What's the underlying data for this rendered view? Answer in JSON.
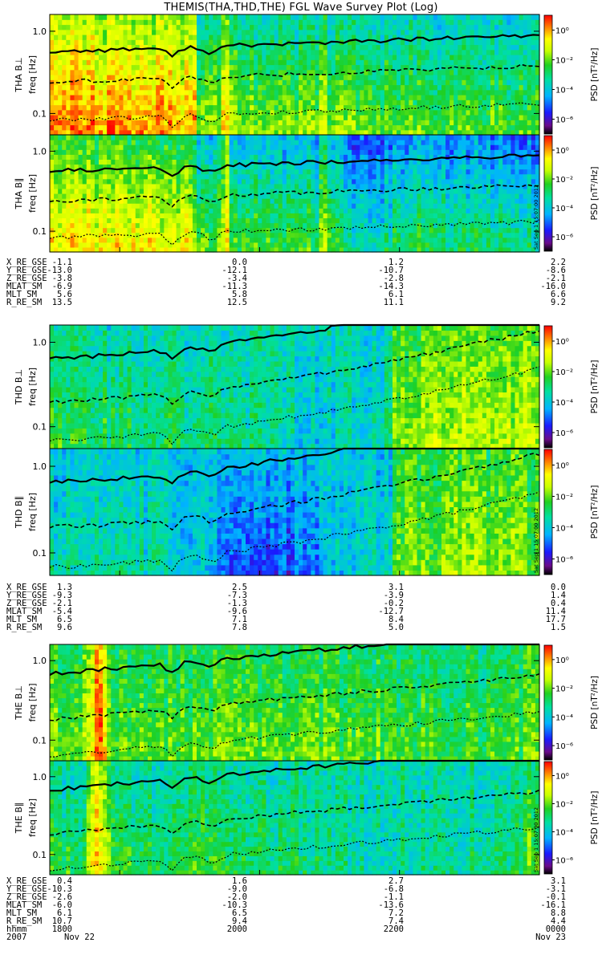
{
  "title": "THEMIS(THA,THD,THE) FGL Wave Survey Plot (Log)",
  "stamp": "Sat Sep  1 15:07:00 2012",
  "chart_data": {
    "type": "heatmap",
    "title": "THEMIS(THA,THD,THE) FGL Wave Survey Plot (Log)",
    "x_range_hhmm": [
      "1700",
      "0000"
    ],
    "time_ticks": [
      {
        "hhmm": "1800",
        "x_frac": 0.142857
      },
      {
        "hhmm": "2000",
        "x_frac": 0.428571
      },
      {
        "hhmm": "2200",
        "x_frac": 0.714286
      },
      {
        "hhmm": "0000",
        "x_frac": 1.0
      }
    ],
    "date_labels": {
      "year": "2007",
      "start": "Nov 22",
      "end": "Nov 23"
    },
    "time_row_label": "hhmm",
    "freq_axis": {
      "label": "freq [Hz]",
      "scale": "log",
      "range": [
        0.055,
        1.6
      ],
      "ticks": [
        "1.0",
        "0.1"
      ]
    },
    "colorbar": {
      "label": "PSD [nT²/Hz]",
      "scale": "log",
      "range": [
        1e-07,
        10
      ],
      "ticks": [
        "10⁰",
        "10⁻²",
        "10⁻⁴",
        "10⁻⁶"
      ]
    },
    "panels": [
      {
        "id": "tha-perp",
        "ylabel": "THA B⊥",
        "probe": "THA"
      },
      {
        "id": "tha-par",
        "ylabel": "THA B∥",
        "probe": "THA"
      },
      {
        "id": "thd-perp",
        "ylabel": "THD B⊥",
        "probe": "THD"
      },
      {
        "id": "thd-par",
        "ylabel": "THD B∥",
        "probe": "THD"
      },
      {
        "id": "the-perp",
        "ylabel": "THE B⊥",
        "probe": "THE"
      },
      {
        "id": "the-par",
        "ylabel": "THE B∥",
        "probe": "THE"
      }
    ],
    "ephemeris": [
      {
        "probe": "THA",
        "rows": [
          {
            "label": "X_RE_GSE",
            "values": [
              "-1.1",
              "0.0",
              "1.2",
              "2.2"
            ]
          },
          {
            "label": "Y_RE_GSE",
            "values": [
              "-13.0",
              "-12.1",
              "-10.7",
              "-8.6"
            ]
          },
          {
            "label": "Z_RE_GSE",
            "values": [
              "-3.8",
              "-3.4",
              "-2.8",
              "-2.1"
            ]
          },
          {
            "label": "MLAT_SM",
            "values": [
              "-6.9",
              "-11.3",
              "-14.3",
              "-16.0"
            ]
          },
          {
            "label": "MLT_SM",
            "values": [
              "5.6",
              "5.8",
              "6.1",
              "6.6"
            ]
          },
          {
            "label": "R_RE_SM",
            "values": [
              "13.5",
              "12.5",
              "11.1",
              "9.2"
            ]
          }
        ]
      },
      {
        "probe": "THD",
        "rows": [
          {
            "label": "X_RE_GSE",
            "values": [
              "1.3",
              "2.5",
              "3.1",
              "0.0"
            ]
          },
          {
            "label": "Y_RE_GSE",
            "values": [
              "-9.3",
              "-7.3",
              "-3.9",
              "1.4"
            ]
          },
          {
            "label": "Z_RE_GSE",
            "values": [
              "-2.1",
              "-1.3",
              "-0.2",
              "0.4"
            ]
          },
          {
            "label": "MLAT_SM",
            "values": [
              "-5.4",
              "-9.6",
              "-12.7",
              "11.4"
            ]
          },
          {
            "label": "MLT_SM",
            "values": [
              "6.5",
              "7.1",
              "8.4",
              "17.7"
            ]
          },
          {
            "label": "R_RE_SM",
            "values": [
              "9.6",
              "7.8",
              "5.0",
              "1.5"
            ]
          }
        ]
      },
      {
        "probe": "THE",
        "rows": [
          {
            "label": "X_RE_GSE",
            "values": [
              "0.4",
              "1.6",
              "2.7",
              "3.1"
            ]
          },
          {
            "label": "Y_RE_GSE",
            "values": [
              "-10.3",
              "-9.0",
              "-6.8",
              "-3.1"
            ]
          },
          {
            "label": "Z_RE_GSE",
            "values": [
              "-2.6",
              "-2.0",
              "-1.1",
              "-0.1"
            ]
          },
          {
            "label": "MLAT_SM",
            "values": [
              "-6.0",
              "-10.3",
              "-13.6",
              "-16.1"
            ]
          },
          {
            "label": "MLT_SM",
            "values": [
              "6.1",
              "6.5",
              "7.2",
              "8.8"
            ]
          },
          {
            "label": "R_RE_SM",
            "values": [
              "10.7",
              "9.4",
              "7.4",
              "4.4"
            ]
          }
        ]
      }
    ]
  }
}
